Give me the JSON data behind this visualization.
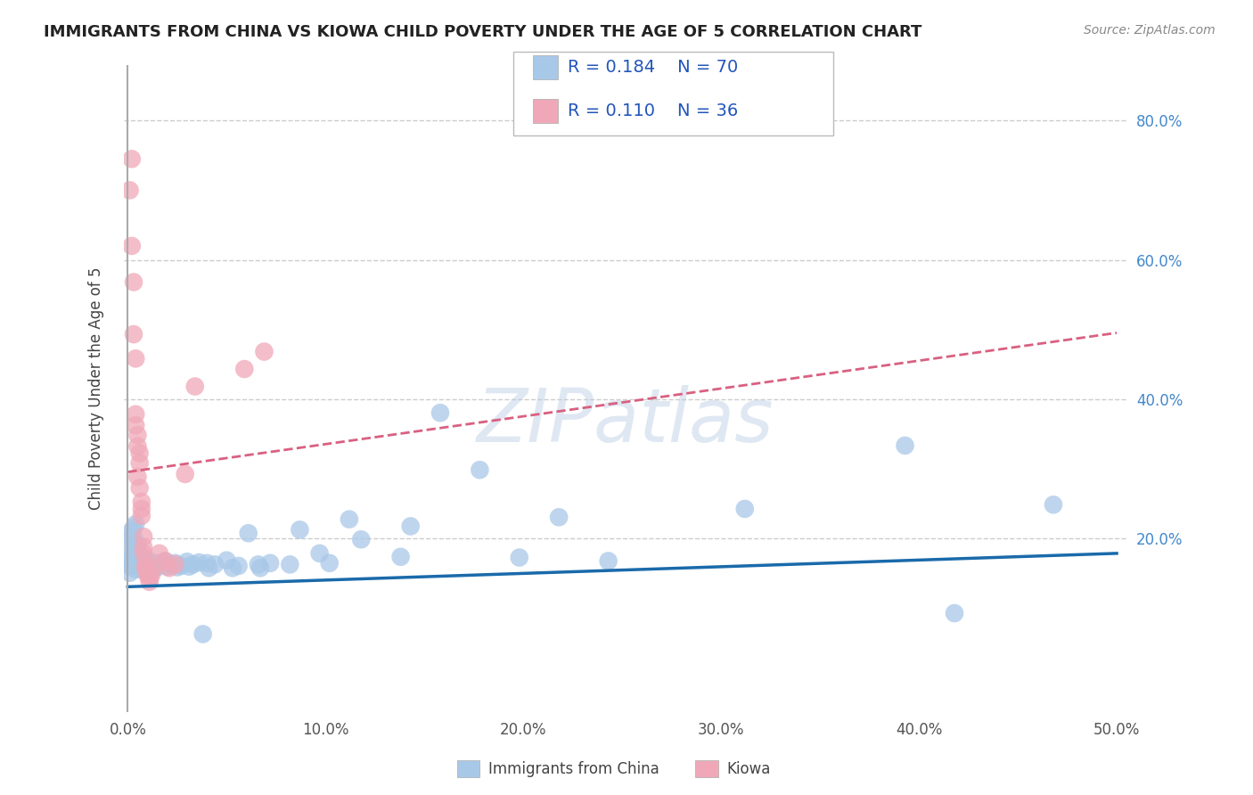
{
  "title": "IMMIGRANTS FROM CHINA VS KIOWA CHILD POVERTY UNDER THE AGE OF 5 CORRELATION CHART",
  "source": "Source: ZipAtlas.com",
  "ylabel": "Child Poverty Under the Age of 5",
  "x_tick_labels": [
    "0.0%",
    "10.0%",
    "20.0%",
    "30.0%",
    "40.0%",
    "50.0%"
  ],
  "x_tick_values": [
    0.0,
    0.1,
    0.2,
    0.3,
    0.4,
    0.5
  ],
  "y_tick_labels_right": [
    "80.0%",
    "60.0%",
    "40.0%",
    "20.0%"
  ],
  "y_tick_values": [
    0.8,
    0.6,
    0.4,
    0.2
  ],
  "xlim": [
    -0.002,
    0.505
  ],
  "ylim": [
    -0.05,
    0.88
  ],
  "legend_label1": "Immigrants from China",
  "legend_label2": "Kiowa",
  "r1": "0.184",
  "n1": "70",
  "r2": "0.110",
  "n2": "36",
  "color_blue": "#a8c8e8",
  "color_pink": "#f0a8b8",
  "line_blue": "#1a6aaa",
  "line_pink": "#d96080",
  "watermark": "ZIPatlas",
  "blue_points": [
    [
      0.001,
      0.2
    ],
    [
      0.001,
      0.17
    ],
    [
      0.001,
      0.16
    ],
    [
      0.001,
      0.15
    ],
    [
      0.002,
      0.21
    ],
    [
      0.002,
      0.19
    ],
    [
      0.002,
      0.175
    ],
    [
      0.002,
      0.16
    ],
    [
      0.003,
      0.215
    ],
    [
      0.003,
      0.2
    ],
    [
      0.003,
      0.185
    ],
    [
      0.003,
      0.17
    ],
    [
      0.004,
      0.22
    ],
    [
      0.004,
      0.185
    ],
    [
      0.004,
      0.17
    ],
    [
      0.004,
      0.155
    ],
    [
      0.005,
      0.19
    ],
    [
      0.005,
      0.175
    ],
    [
      0.005,
      0.16
    ],
    [
      0.006,
      0.178
    ],
    [
      0.006,
      0.163
    ],
    [
      0.007,
      0.168
    ],
    [
      0.007,
      0.155
    ],
    [
      0.008,
      0.162
    ],
    [
      0.008,
      0.156
    ],
    [
      0.01,
      0.168
    ],
    [
      0.01,
      0.16
    ],
    [
      0.012,
      0.162
    ],
    [
      0.012,
      0.157
    ],
    [
      0.014,
      0.164
    ],
    [
      0.015,
      0.158
    ],
    [
      0.017,
      0.162
    ],
    [
      0.019,
      0.167
    ],
    [
      0.02,
      0.159
    ],
    [
      0.022,
      0.162
    ],
    [
      0.024,
      0.164
    ],
    [
      0.025,
      0.158
    ],
    [
      0.027,
      0.16
    ],
    [
      0.03,
      0.166
    ],
    [
      0.031,
      0.159
    ],
    [
      0.033,
      0.162
    ],
    [
      0.036,
      0.165
    ],
    [
      0.038,
      0.062
    ],
    [
      0.04,
      0.164
    ],
    [
      0.041,
      0.157
    ],
    [
      0.044,
      0.162
    ],
    [
      0.05,
      0.168
    ],
    [
      0.053,
      0.157
    ],
    [
      0.056,
      0.16
    ],
    [
      0.061,
      0.207
    ],
    [
      0.066,
      0.162
    ],
    [
      0.067,
      0.157
    ],
    [
      0.072,
      0.164
    ],
    [
      0.082,
      0.162
    ],
    [
      0.087,
      0.212
    ],
    [
      0.097,
      0.178
    ],
    [
      0.102,
      0.164
    ],
    [
      0.112,
      0.227
    ],
    [
      0.118,
      0.198
    ],
    [
      0.138,
      0.173
    ],
    [
      0.143,
      0.217
    ],
    [
      0.158,
      0.38
    ],
    [
      0.178,
      0.298
    ],
    [
      0.198,
      0.172
    ],
    [
      0.218,
      0.23
    ],
    [
      0.243,
      0.167
    ],
    [
      0.312,
      0.242
    ],
    [
      0.393,
      0.333
    ],
    [
      0.418,
      0.092
    ],
    [
      0.468,
      0.248
    ]
  ],
  "pink_points": [
    [
      0.001,
      0.7
    ],
    [
      0.002,
      0.745
    ],
    [
      0.002,
      0.62
    ],
    [
      0.003,
      0.568
    ],
    [
      0.003,
      0.493
    ],
    [
      0.004,
      0.458
    ],
    [
      0.004,
      0.378
    ],
    [
      0.004,
      0.362
    ],
    [
      0.005,
      0.348
    ],
    [
      0.005,
      0.332
    ],
    [
      0.005,
      0.288
    ],
    [
      0.006,
      0.272
    ],
    [
      0.006,
      0.322
    ],
    [
      0.006,
      0.308
    ],
    [
      0.007,
      0.252
    ],
    [
      0.007,
      0.242
    ],
    [
      0.007,
      0.232
    ],
    [
      0.008,
      0.202
    ],
    [
      0.008,
      0.187
    ],
    [
      0.008,
      0.178
    ],
    [
      0.009,
      0.162
    ],
    [
      0.009,
      0.157
    ],
    [
      0.01,
      0.15
    ],
    [
      0.01,
      0.147
    ],
    [
      0.011,
      0.142
    ],
    [
      0.011,
      0.137
    ],
    [
      0.012,
      0.147
    ],
    [
      0.013,
      0.157
    ],
    [
      0.016,
      0.178
    ],
    [
      0.019,
      0.167
    ],
    [
      0.021,
      0.157
    ],
    [
      0.024,
      0.162
    ],
    [
      0.029,
      0.292
    ],
    [
      0.034,
      0.418
    ],
    [
      0.059,
      0.443
    ],
    [
      0.069,
      0.468
    ]
  ],
  "blue_trendline_x": [
    0.0,
    0.5
  ],
  "blue_trendline_y": [
    0.13,
    0.178
  ],
  "pink_trendline_x": [
    0.0,
    0.5
  ],
  "pink_trendline_y": [
    0.295,
    0.495
  ]
}
